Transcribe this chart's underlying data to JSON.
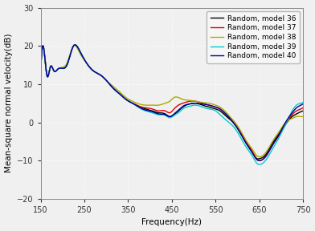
{
  "title": "",
  "xlabel": "Frequency(Hz)",
  "ylabel": "Mean-square normal velocity(dB)",
  "xlim": [
    150,
    750
  ],
  "ylim": [
    -20,
    30
  ],
  "xticks": [
    150,
    250,
    350,
    450,
    550,
    650,
    750
  ],
  "yticks": [
    -20,
    -10,
    0,
    10,
    20,
    30
  ],
  "grid": true,
  "series": [
    {
      "label": "Random, model 36",
      "color": "#000000",
      "linewidth": 1.0,
      "points": [
        [
          150,
          13.0
        ],
        [
          158,
          18.5
        ],
        [
          165,
          12.0
        ],
        [
          172,
          14.5
        ],
        [
          180,
          13.5
        ],
        [
          190,
          14.0
        ],
        [
          210,
          15.0
        ],
        [
          225,
          20.0
        ],
        [
          240,
          18.5
        ],
        [
          255,
          15.5
        ],
        [
          270,
          13.5
        ],
        [
          285,
          12.5
        ],
        [
          300,
          11.0
        ],
        [
          315,
          9.0
        ],
        [
          330,
          7.5
        ],
        [
          345,
          6.0
        ],
        [
          360,
          5.0
        ],
        [
          375,
          4.2
        ],
        [
          390,
          3.5
        ],
        [
          405,
          3.0
        ],
        [
          420,
          2.5
        ],
        [
          435,
          2.2
        ],
        [
          445,
          1.5
        ],
        [
          455,
          2.0
        ],
        [
          465,
          3.0
        ],
        [
          475,
          4.0
        ],
        [
          490,
          4.8
        ],
        [
          505,
          5.0
        ],
        [
          520,
          4.5
        ],
        [
          535,
          4.0
        ],
        [
          550,
          3.5
        ],
        [
          560,
          3.0
        ],
        [
          575,
          1.5
        ],
        [
          590,
          0.0
        ],
        [
          605,
          -2.5
        ],
        [
          620,
          -5.5
        ],
        [
          635,
          -8.0
        ],
        [
          645,
          -9.5
        ],
        [
          650,
          -9.5
        ],
        [
          660,
          -9.0
        ],
        [
          670,
          -7.5
        ],
        [
          680,
          -5.5
        ],
        [
          695,
          -3.0
        ],
        [
          710,
          -0.5
        ],
        [
          725,
          1.5
        ],
        [
          735,
          2.2
        ],
        [
          745,
          2.8
        ],
        [
          750,
          3.0
        ]
      ]
    },
    {
      "label": "Random, model 37",
      "color": "#dd0000",
      "linewidth": 1.0,
      "points": [
        [
          150,
          13.0
        ],
        [
          158,
          18.5
        ],
        [
          165,
          12.0
        ],
        [
          172,
          14.5
        ],
        [
          180,
          13.5
        ],
        [
          190,
          14.0
        ],
        [
          210,
          15.0
        ],
        [
          225,
          20.0
        ],
        [
          240,
          18.5
        ],
        [
          255,
          15.5
        ],
        [
          270,
          13.5
        ],
        [
          285,
          12.5
        ],
        [
          300,
          11.0
        ],
        [
          315,
          9.0
        ],
        [
          330,
          7.5
        ],
        [
          345,
          6.0
        ],
        [
          360,
          5.0
        ],
        [
          375,
          4.2
        ],
        [
          390,
          3.8
        ],
        [
          405,
          3.5
        ],
        [
          420,
          3.0
        ],
        [
          435,
          3.0
        ],
        [
          445,
          2.5
        ],
        [
          455,
          3.5
        ],
        [
          465,
          4.5
        ],
        [
          475,
          5.0
        ],
        [
          490,
          5.5
        ],
        [
          505,
          5.5
        ],
        [
          520,
          5.0
        ],
        [
          535,
          4.5
        ],
        [
          550,
          4.0
        ],
        [
          560,
          3.5
        ],
        [
          575,
          2.0
        ],
        [
          590,
          0.5
        ],
        [
          605,
          -2.0
        ],
        [
          620,
          -5.0
        ],
        [
          635,
          -7.8
        ],
        [
          645,
          -9.8
        ],
        [
          650,
          -10.0
        ],
        [
          660,
          -9.5
        ],
        [
          670,
          -8.0
        ],
        [
          680,
          -6.0
        ],
        [
          695,
          -3.5
        ],
        [
          710,
          -0.5
        ],
        [
          725,
          2.0
        ],
        [
          735,
          3.0
        ],
        [
          745,
          3.5
        ],
        [
          750,
          3.8
        ]
      ]
    },
    {
      "label": "Random, model 38",
      "color": "#aaaa00",
      "linewidth": 1.0,
      "points": [
        [
          150,
          13.0
        ],
        [
          158,
          18.5
        ],
        [
          165,
          12.0
        ],
        [
          172,
          14.5
        ],
        [
          180,
          13.5
        ],
        [
          190,
          14.0
        ],
        [
          210,
          15.5
        ],
        [
          225,
          20.0
        ],
        [
          240,
          18.0
        ],
        [
          255,
          15.5
        ],
        [
          270,
          13.5
        ],
        [
          285,
          12.5
        ],
        [
          300,
          11.0
        ],
        [
          315,
          9.5
        ],
        [
          330,
          8.0
        ],
        [
          345,
          6.5
        ],
        [
          360,
          5.5
        ],
        [
          375,
          4.8
        ],
        [
          390,
          4.5
        ],
        [
          405,
          4.5
        ],
        [
          420,
          4.5
        ],
        [
          435,
          5.0
        ],
        [
          445,
          5.5
        ],
        [
          455,
          6.5
        ],
        [
          465,
          6.5
        ],
        [
          475,
          6.0
        ],
        [
          490,
          5.8
        ],
        [
          505,
          5.5
        ],
        [
          520,
          5.2
        ],
        [
          535,
          5.0
        ],
        [
          550,
          4.5
        ],
        [
          560,
          4.0
        ],
        [
          575,
          2.5
        ],
        [
          590,
          0.5
        ],
        [
          605,
          -1.8
        ],
        [
          620,
          -4.8
        ],
        [
          635,
          -7.2
        ],
        [
          645,
          -8.8
        ],
        [
          650,
          -9.0
        ],
        [
          660,
          -8.5
        ],
        [
          670,
          -7.0
        ],
        [
          680,
          -5.0
        ],
        [
          695,
          -2.5
        ],
        [
          710,
          0.0
        ],
        [
          725,
          1.0
        ],
        [
          735,
          1.5
        ],
        [
          745,
          1.5
        ],
        [
          750,
          1.5
        ]
      ]
    },
    {
      "label": "Random, model 39",
      "color": "#00cccc",
      "linewidth": 1.0,
      "points": [
        [
          150,
          13.0
        ],
        [
          158,
          18.5
        ],
        [
          165,
          12.0
        ],
        [
          172,
          14.5
        ],
        [
          180,
          13.5
        ],
        [
          190,
          14.0
        ],
        [
          210,
          15.0
        ],
        [
          225,
          20.0
        ],
        [
          240,
          18.5
        ],
        [
          255,
          15.5
        ],
        [
          270,
          13.5
        ],
        [
          285,
          12.5
        ],
        [
          300,
          11.0
        ],
        [
          315,
          9.0
        ],
        [
          330,
          7.5
        ],
        [
          345,
          6.0
        ],
        [
          360,
          5.0
        ],
        [
          375,
          3.8
        ],
        [
          390,
          3.0
        ],
        [
          405,
          2.5
        ],
        [
          420,
          2.0
        ],
        [
          435,
          1.8
        ],
        [
          445,
          1.2
        ],
        [
          455,
          1.8
        ],
        [
          465,
          2.5
        ],
        [
          475,
          3.5
        ],
        [
          490,
          4.2
        ],
        [
          505,
          4.5
        ],
        [
          520,
          4.0
        ],
        [
          535,
          3.5
        ],
        [
          550,
          3.0
        ],
        [
          560,
          2.0
        ],
        [
          575,
          0.5
        ],
        [
          590,
          -1.0
        ],
        [
          605,
          -3.5
        ],
        [
          620,
          -6.5
        ],
        [
          635,
          -9.0
        ],
        [
          645,
          -10.8
        ],
        [
          650,
          -11.0
        ],
        [
          660,
          -10.5
        ],
        [
          670,
          -9.0
        ],
        [
          680,
          -7.0
        ],
        [
          695,
          -4.0
        ],
        [
          710,
          -0.5
        ],
        [
          725,
          3.0
        ],
        [
          735,
          4.5
        ],
        [
          745,
          5.0
        ],
        [
          750,
          5.2
        ]
      ]
    },
    {
      "label": "Random, model 40",
      "color": "#000099",
      "linewidth": 1.0,
      "points": [
        [
          150,
          13.0
        ],
        [
          158,
          18.5
        ],
        [
          165,
          12.0
        ],
        [
          172,
          14.5
        ],
        [
          180,
          13.5
        ],
        [
          190,
          14.0
        ],
        [
          210,
          15.0
        ],
        [
          225,
          20.0
        ],
        [
          240,
          18.5
        ],
        [
          255,
          15.5
        ],
        [
          270,
          13.5
        ],
        [
          285,
          12.5
        ],
        [
          300,
          11.0
        ],
        [
          315,
          9.0
        ],
        [
          330,
          7.5
        ],
        [
          345,
          6.0
        ],
        [
          360,
          5.0
        ],
        [
          375,
          4.0
        ],
        [
          390,
          3.2
        ],
        [
          405,
          2.8
        ],
        [
          420,
          2.2
        ],
        [
          435,
          2.0
        ],
        [
          445,
          1.5
        ],
        [
          455,
          2.2
        ],
        [
          465,
          3.2
        ],
        [
          475,
          4.2
        ],
        [
          490,
          4.8
        ],
        [
          505,
          5.0
        ],
        [
          520,
          4.8
        ],
        [
          535,
          4.5
        ],
        [
          550,
          4.0
        ],
        [
          560,
          3.5
        ],
        [
          575,
          2.0
        ],
        [
          590,
          0.0
        ],
        [
          605,
          -2.5
        ],
        [
          620,
          -5.5
        ],
        [
          635,
          -8.2
        ],
        [
          645,
          -9.8
        ],
        [
          650,
          -10.0
        ],
        [
          660,
          -9.5
        ],
        [
          670,
          -8.0
        ],
        [
          680,
          -6.0
        ],
        [
          695,
          -3.2
        ],
        [
          710,
          0.0
        ],
        [
          725,
          2.5
        ],
        [
          735,
          3.8
        ],
        [
          745,
          4.5
        ],
        [
          750,
          4.8
        ]
      ]
    }
  ],
  "legend_fontsize": 6.5,
  "axis_fontsize": 7.5,
  "tick_fontsize": 7,
  "background_color": "#f0f0f0",
  "plot_bg_color": "#f0f0f0",
  "grid_color": "#ffffff",
  "grid_linestyle": ":"
}
